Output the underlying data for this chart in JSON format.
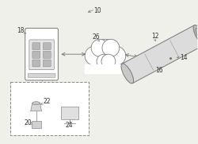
{
  "bg_color": "#f0f0eb",
  "line_color": "#777777",
  "text_color": "#333333",
  "labels": {
    "fig": "10",
    "phone": "18",
    "cloud": "26",
    "sensor_top": "12",
    "sensor_mid": "14",
    "sensor_bot": "16",
    "robot_body": "20",
    "robot_cup": "22",
    "monitor": "24"
  }
}
